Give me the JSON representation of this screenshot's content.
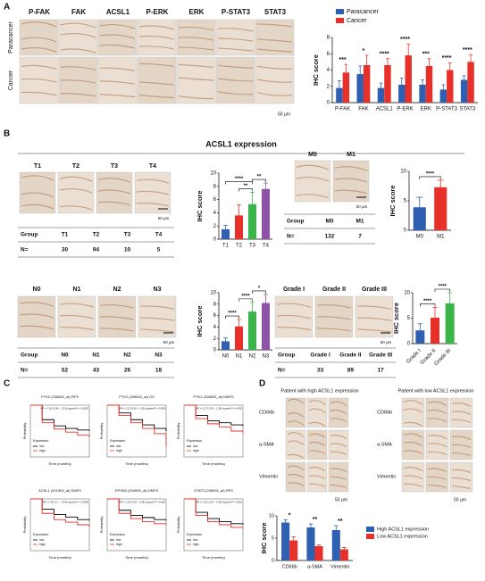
{
  "panels": {
    "A": {
      "label": "A",
      "columns": [
        "P-FAK",
        "FAK",
        "ACSL1",
        "P-ERK",
        "ERK",
        "P-STAT3",
        "STAT3"
      ],
      "rows": [
        "Paracancer",
        "Cancer"
      ],
      "scale": "50 μm"
    },
    "B": {
      "label": "B",
      "title": "ACSL1 expression",
      "groups": [
        {
          "images": [
            "T1",
            "T2",
            "T3",
            "T4"
          ],
          "table": [
            [
              "Group",
              "T1",
              "T2",
              "T3",
              "T4"
            ],
            [
              "N=",
              30,
              94,
              10,
              5
            ]
          ],
          "scale": "50 μm"
        },
        {
          "images": [
            "M0",
            "M1"
          ],
          "table": [
            [
              "Group",
              "M0",
              "M1"
            ],
            [
              "N=",
              132,
              7
            ]
          ],
          "scale": "50 μm"
        },
        {
          "images": [
            "N0",
            "N1",
            "N2",
            "N3"
          ],
          "table": [
            [
              "Group",
              "N0",
              "N1",
              "N2",
              "N3"
            ],
            [
              "N=",
              52,
              43,
              26,
              18
            ]
          ],
          "scale": "50 μm"
        },
        {
          "images": [
            "Grade I",
            "Grade II",
            "Grade III"
          ],
          "table": [
            [
              "Group",
              "Grade I",
              "Grade II",
              "Grade III"
            ],
            [
              "N=",
              33,
              89,
              17
            ]
          ],
          "scale": "50 μm"
        }
      ]
    },
    "C": {
      "label": "C"
    },
    "D": {
      "label": "D",
      "headers": [
        "Patient with high ACSL1 expression",
        "Patient with low ACSL1 expression"
      ],
      "rows": [
        "CD66b",
        "a-SMA",
        "Vimentin"
      ],
      "scale": "50 μm"
    }
  },
  "chart_data": [
    {
      "type": "bar",
      "ylabel": "IHC score",
      "categories": [
        "P-FAK",
        "FAK",
        "ACSL1",
        "P-ERK",
        "ERK",
        "P-STAT3",
        "STAT3"
      ],
      "series": [
        {
          "name": "Paracancer",
          "color": "#2f5fb0",
          "values": [
            1.8,
            3.5,
            1.8,
            2.2,
            2.2,
            1.6,
            2.8
          ],
          "errors": [
            0.9,
            1.0,
            0.6,
            0.8,
            0.6,
            0.6,
            0.5
          ]
        },
        {
          "name": "Cancer",
          "color": "#e8302a",
          "values": [
            3.7,
            4.6,
            4.6,
            5.8,
            4.5,
            4.0,
            5.0
          ],
          "errors": [
            1.0,
            1.2,
            0.8,
            1.4,
            0.9,
            0.9,
            0.9
          ]
        }
      ],
      "annotations": [
        "***",
        "*",
        "****",
        "****",
        "***",
        "****",
        "****"
      ],
      "ylim": [
        0,
        8
      ],
      "yticks": [
        0,
        2,
        4,
        6,
        8
      ],
      "legend": "top"
    },
    {
      "type": "bar",
      "ylabel": "IHC score",
      "categories": [
        "T1",
        "T2",
        "T3",
        "T4"
      ],
      "values": [
        1.5,
        3.6,
        5.3,
        7.6
      ],
      "errors": [
        0.6,
        1.6,
        1.8,
        0.9
      ],
      "colors": [
        "#2f5fb0",
        "#e8302a",
        "#3ab54a",
        "#8e52a8"
      ],
      "ylim": [
        0,
        10
      ],
      "yticks": [
        0,
        2,
        4,
        6,
        8,
        10
      ],
      "brackets": [
        {
          "from": 0,
          "to": 2,
          "label": "****"
        },
        {
          "from": 1,
          "to": 2,
          "label": "**"
        },
        {
          "from": 2,
          "to": 3,
          "label": "**"
        }
      ]
    },
    {
      "type": "bar",
      "ylabel": "IHC score",
      "categories": [
        "M0",
        "M1"
      ],
      "values": [
        3.9,
        7.3
      ],
      "errors": [
        1.7,
        1.2
      ],
      "colors": [
        "#2f5fb0",
        "#e8302a"
      ],
      "ylim": [
        0,
        10
      ],
      "yticks": [
        0,
        5,
        10
      ],
      "brackets": [
        {
          "from": 0,
          "to": 1,
          "label": "****"
        }
      ]
    },
    {
      "type": "bar",
      "ylabel": "IHC score",
      "categories": [
        "N0",
        "N1",
        "N2",
        "N3"
      ],
      "values": [
        1.5,
        4.1,
        6.7,
        8.2
      ],
      "errors": [
        0.6,
        1.2,
        1.6,
        1.5
      ],
      "colors": [
        "#2f5fb0",
        "#e8302a",
        "#3ab54a",
        "#8e52a8"
      ],
      "ylim": [
        0,
        10
      ],
      "yticks": [
        0,
        2,
        4,
        6,
        8,
        10
      ],
      "brackets": [
        {
          "from": 0,
          "to": 1,
          "label": "****"
        },
        {
          "from": 1,
          "to": 2,
          "label": "****"
        },
        {
          "from": 2,
          "to": 3,
          "label": "*"
        }
      ]
    },
    {
      "type": "bar",
      "ylabel": "IHC score",
      "categories": [
        "Grade I",
        "Grade II",
        "Grade III"
      ],
      "values": [
        2.6,
        5.1,
        7.9
      ],
      "errors": [
        1.3,
        2.0,
        2.1
      ],
      "colors": [
        "#2f5fb0",
        "#e8302a",
        "#3ab54a"
      ],
      "ylim": [
        0,
        10
      ],
      "yticks": [
        0,
        5,
        10
      ],
      "brackets": [
        {
          "from": 0,
          "to": 1,
          "label": "****"
        },
        {
          "from": 1,
          "to": 2,
          "label": "****"
        }
      ]
    },
    {
      "type": "km",
      "title": "PTK2 (208820_at) RFS",
      "annotation": "HR = 1.18 (1.06 – 1.31)  logrank P = 0.0023",
      "xlabel": "Time (months)",
      "ylabel": "Probability",
      "legend_title": "Expression",
      "x": [
        0,
        50,
        100,
        150,
        200,
        250
      ],
      "xlim": [
        0,
        250
      ],
      "ylim": [
        0,
        1
      ],
      "series": [
        {
          "name": "low",
          "color": "#000000",
          "values": [
            1,
            0.72,
            0.6,
            0.55,
            0.52,
            0.5
          ]
        },
        {
          "name": "high",
          "color": "#e8302a",
          "values": [
            1,
            0.66,
            0.54,
            0.48,
            0.42,
            0.38
          ]
        }
      ]
    },
    {
      "type": "km",
      "title": "PTK2 (208820_at) OS",
      "annotation": "HR = 1.27 (0.99 – 1.63)  logrank P = 0.059",
      "xlabel": "Time (months)",
      "ylabel": "Probability",
      "legend_title": "Expression",
      "x": [
        0,
        50,
        100,
        150,
        200,
        250
      ],
      "xlim": [
        0,
        250
      ],
      "ylim": [
        0,
        1
      ],
      "series": [
        {
          "name": "low",
          "color": "#000000",
          "values": [
            1,
            0.85,
            0.72,
            0.62,
            0.55,
            0.5
          ]
        },
        {
          "name": "high",
          "color": "#e8302a",
          "values": [
            1,
            0.8,
            0.66,
            0.55,
            0.45,
            0.2
          ]
        }
      ]
    },
    {
      "type": "km",
      "title": "PTK2 (208820_at) DMFS",
      "annotation": "HR = 1.27 (1.03 – 1.56)  logrank P = 0.025",
      "xlabel": "Time (months)",
      "ylabel": "Probability",
      "legend_title": "Expression",
      "x": [
        0,
        50,
        100,
        150,
        200,
        250
      ],
      "xlim": [
        0,
        250
      ],
      "ylim": [
        0,
        1
      ],
      "series": [
        {
          "name": "low",
          "color": "#000000",
          "values": [
            1,
            0.8,
            0.7,
            0.66,
            0.62,
            0.6
          ]
        },
        {
          "name": "high",
          "color": "#e8302a",
          "values": [
            1,
            0.74,
            0.64,
            0.58,
            0.5,
            0.46
          ]
        }
      ]
    },
    {
      "type": "km",
      "title": "ACSL1 (201963_at) DMFS",
      "annotation": "HR = 1.35 (1.1 – 1.65)  logrank P = 0.0036",
      "xlabel": "Time (months)",
      "ylabel": "Probability",
      "legend_title": "Expression",
      "x": [
        0,
        50,
        100,
        150,
        200,
        250
      ],
      "xlim": [
        0,
        250
      ],
      "ylim": [
        0,
        1
      ],
      "series": [
        {
          "name": "low",
          "color": "#000000",
          "values": [
            1,
            0.8,
            0.7,
            0.65,
            0.6,
            0.58
          ]
        },
        {
          "name": "high",
          "color": "#e8302a",
          "values": [
            1,
            0.72,
            0.6,
            0.55,
            0.5,
            0.45
          ]
        }
      ]
    },
    {
      "type": "km",
      "title": "EPHB3 (204600_at) DMFS",
      "annotation": "HR = 1.26 (1.03 – 1.55)  logrank P = 0.026",
      "xlabel": "Time (months)",
      "ylabel": "Probability",
      "legend_title": "Expression",
      "x": [
        0,
        50,
        100,
        150,
        200,
        250
      ],
      "xlim": [
        0,
        250
      ],
      "ylim": [
        0,
        1
      ],
      "series": [
        {
          "name": "low",
          "color": "#000000",
          "values": [
            1,
            0.78,
            0.68,
            0.64,
            0.6,
            0.58
          ]
        },
        {
          "name": "high",
          "color": "#e8302a",
          "values": [
            1,
            0.72,
            0.62,
            0.56,
            0.52,
            0.5
          ]
        }
      ]
    },
    {
      "type": "km",
      "title": "STAT3 (208991_at) RFS",
      "annotation": "HR = 1.15 (1.03 – 1.29)  logrank P = 0.016",
      "xlabel": "Time (months)",
      "ylabel": "Probability",
      "legend_title": "Expression",
      "x": [
        0,
        50,
        100,
        150,
        200,
        250
      ],
      "xlim": [
        0,
        250
      ],
      "ylim": [
        0,
        1
      ],
      "series": [
        {
          "name": "low",
          "color": "#000000",
          "values": [
            1,
            0.74,
            0.62,
            0.56,
            0.52,
            0.5
          ]
        },
        {
          "name": "high",
          "color": "#e8302a",
          "values": [
            1,
            0.68,
            0.56,
            0.5,
            0.45,
            0.42
          ]
        }
      ]
    },
    {
      "type": "bar",
      "ylabel": "IHC score",
      "categories": [
        "CD66b",
        "a-SMA",
        "Vimentin"
      ],
      "series": [
        {
          "name": "High ACSL1 expression",
          "color": "#2f5fb0",
          "values": [
            8.5,
            7.4,
            6.8
          ],
          "errors": [
            0.6,
            0.8,
            1.0
          ]
        },
        {
          "name": "Low ACSL1 expression",
          "color": "#e8302a",
          "values": [
            4.5,
            3.2,
            2.5
          ],
          "errors": [
            0.8,
            0.3,
            0.4
          ]
        }
      ],
      "annotations": [
        "*",
        "**",
        "**"
      ],
      "ylim": [
        0,
        10
      ],
      "yticks": [
        0,
        5,
        10
      ],
      "legend": "right"
    }
  ]
}
